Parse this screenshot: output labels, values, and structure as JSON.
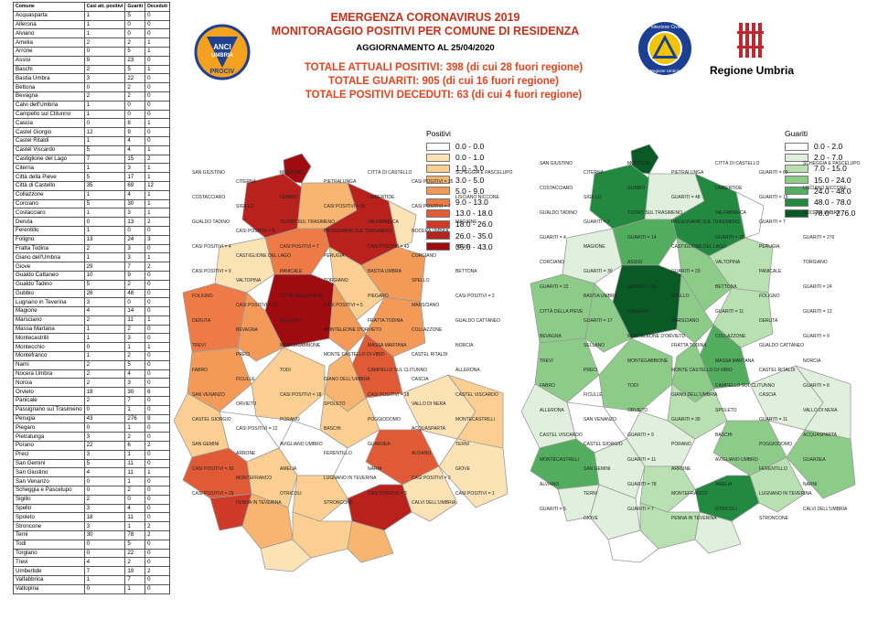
{
  "table": {
    "headers": [
      "Comune",
      "Casi att. positivi",
      "Guariti",
      "Deceduti"
    ],
    "rows": [
      [
        "Acquasparta",
        "1",
        "5",
        "0"
      ],
      [
        "Allerona",
        "1",
        "0",
        "0"
      ],
      [
        "Alviano",
        "1",
        "0",
        "0"
      ],
      [
        "Amelia",
        "2",
        "2",
        "1"
      ],
      [
        "Arrone",
        "0",
        "5",
        "1"
      ],
      [
        "Assisi",
        "9",
        "23",
        "0"
      ],
      [
        "Baschi",
        "2",
        "5",
        "1"
      ],
      [
        "Bastia Umbra",
        "3",
        "22",
        "0"
      ],
      [
        "Bettona",
        "0",
        "2",
        "0"
      ],
      [
        "Bevagna",
        "2",
        "2",
        "0"
      ],
      [
        "Calvi dell'Umbria",
        "1",
        "0",
        "0"
      ],
      [
        "Campello sul Clitunno",
        "1",
        "0",
        "0"
      ],
      [
        "Cascia",
        "0",
        "8",
        "1"
      ],
      [
        "Castel Giorgio",
        "12",
        "9",
        "0"
      ],
      [
        "Castel Ritaldi",
        "1",
        "4",
        "0"
      ],
      [
        "Castel Viscardo",
        "5",
        "4",
        "1"
      ],
      [
        "Castiglione del Lago",
        "7",
        "15",
        "2"
      ],
      [
        "Citerna",
        "1",
        "3",
        "1"
      ],
      [
        "Città della Pieve",
        "5",
        "17",
        "1"
      ],
      [
        "Città  di Castello",
        "35",
        "69",
        "12"
      ],
      [
        "Collazzone",
        "1",
        "4",
        "1"
      ],
      [
        "Corciano",
        "5",
        "30",
        "1"
      ],
      [
        "Costacciaro",
        "1",
        "3",
        "1"
      ],
      [
        "Deruta",
        "0",
        "13",
        "2"
      ],
      [
        "Ferentillo",
        "1",
        "0",
        "0"
      ],
      [
        "Foligno",
        "13",
        "24",
        "3"
      ],
      [
        "Fratta Todina",
        "2",
        "3",
        "0"
      ],
      [
        "Giano dell'Umbria",
        "1",
        "3",
        "1"
      ],
      [
        "Giove",
        "29",
        "7",
        "2"
      ],
      [
        "Gualdo Cattaneo",
        "10",
        "9",
        "0"
      ],
      [
        "Gualdo Tadino",
        "5",
        "2",
        "0"
      ],
      [
        "Gubbio",
        "26",
        "48",
        "0"
      ],
      [
        "Lugnano in Teverina",
        "3",
        "0",
        "0"
      ],
      [
        "Magione",
        "4",
        "14",
        "0"
      ],
      [
        "Marsciano",
        "2",
        "11",
        "1"
      ],
      [
        "Massa Martana",
        "1",
        "2",
        "0"
      ],
      [
        "Montecastrilli",
        "1",
        "3",
        "0"
      ],
      [
        "Montecchio",
        "0",
        "1",
        "1"
      ],
      [
        "Montefranco",
        "1",
        "2",
        "0"
      ],
      [
        "Narni",
        "2",
        "5",
        "0"
      ],
      [
        "Nocera Umbra",
        "2",
        "4",
        "0"
      ],
      [
        "Norcia",
        "2",
        "3",
        "0"
      ],
      [
        "Orvieto",
        "18",
        "30",
        "6"
      ],
      [
        "Panicale",
        "2",
        "7",
        "0"
      ],
      [
        "Passignano sul Trasimeno",
        "0",
        "1",
        "0"
      ],
      [
        "Perugia",
        "43",
        "276",
        "9"
      ],
      [
        "Piegaro",
        "0",
        "1",
        "0"
      ],
      [
        "Pietralunga",
        "3",
        "2",
        "0"
      ],
      [
        "Porano",
        "22",
        "6",
        "2"
      ],
      [
        "Preci",
        "3",
        "1",
        "0"
      ],
      [
        "San Gemini",
        "5",
        "11",
        "0"
      ],
      [
        "San Giustino",
        "4",
        "11",
        "1"
      ],
      [
        "San Venanzo",
        "0",
        "1",
        "0"
      ],
      [
        "Scheggia e Pascelupo",
        "0",
        "2",
        "0"
      ],
      [
        "Sigillo",
        "2",
        "0",
        "0"
      ],
      [
        "Spello",
        "3",
        "4",
        "0"
      ],
      [
        "Spoleto",
        "18",
        "11",
        "0"
      ],
      [
        "Stroncone",
        "3",
        "1",
        "2"
      ],
      [
        "Terni",
        "30",
        "78",
        "2"
      ],
      [
        "Todi",
        "0",
        "5",
        "0"
      ],
      [
        "Torgiano",
        "0",
        "22",
        "0"
      ],
      [
        "Trevi",
        "4",
        "2",
        "0"
      ],
      [
        "Umbertide",
        "7",
        "19",
        "2"
      ],
      [
        "Valfabbrica",
        "1",
        "7",
        "0"
      ],
      [
        "Valtopina",
        "0",
        "1",
        "0"
      ]
    ]
  },
  "header": {
    "title1": "EMERGENZA CORONAVIRUS 2019",
    "title2": "MONITORAGGIO POSITIVI PER COMUNE DI RESIDENZA",
    "update": "AGGIORNAMENTO AL 25/04/2020",
    "total_positive": "TOTALE ATTUALI POSITIVI: 398 (di cui 28 fuori regione)",
    "total_recovered": "TOTALE GUARITI: 905 (di cui 16 fuori regione)",
    "total_deceased": "TOTALE POSITIVI DECEDUTI: 63 (di cui 4 fuori regione)"
  },
  "logos": {
    "anci_text": [
      "ANCI",
      "UMBRIA",
      "PROCIV"
    ],
    "protezione_civile_text": [
      "Protezione Civile",
      "Regione Umbria"
    ],
    "region_label": "Regione Umbria"
  },
  "legend_positivi": {
    "title": "Positivi",
    "items": [
      {
        "label": "0.0 - 0.0",
        "color": "#ffffff"
      },
      {
        "label": "0.0 - 1.0",
        "color": "#fde2b6"
      },
      {
        "label": "1.0 - 3.0",
        "color": "#fbcf92"
      },
      {
        "label": "3.0 - 5.0",
        "color": "#f7b56f"
      },
      {
        "label": "5.0 - 9.0",
        "color": "#f39a58"
      },
      {
        "label": "9.0 - 13.0",
        "color": "#ee7b45"
      },
      {
        "label": "13.0 - 18.0",
        "color": "#e05a36"
      },
      {
        "label": "18.0 - 26.0",
        "color": "#cf3a28"
      },
      {
        "label": "26.0 - 35.0",
        "color": "#b8211c"
      },
      {
        "label": "35.0 - 43.0",
        "color": "#9e0c12"
      }
    ]
  },
  "legend_guariti": {
    "title": "Guariti",
    "items": [
      {
        "label": "0.0 - 2.0",
        "color": "#ffffff"
      },
      {
        "label": "2.0 - 7.0",
        "color": "#dff0dc"
      },
      {
        "label": "7.0 - 15.0",
        "color": "#b8e0b1"
      },
      {
        "label": "15.0 - 24.0",
        "color": "#8ccc88"
      },
      {
        "label": "24.0 - 48.0",
        "color": "#52ad5e"
      },
      {
        "label": "48.0 - 78.0",
        "color": "#228a3f"
      },
      {
        "label": "78.0 - 276.0",
        "color": "#0a5a26"
      }
    ]
  },
  "map_positivi_labels": [
    "SAN GIUSTINO",
    "CITERNA",
    "MONTONE",
    "PIETRALUNGA",
    "CITTÀ DI CASTELLO",
    "CASI POSITIVI = 35",
    "SCHEGGIA E PASCELUPO",
    "COSTACCIARO",
    "SIGILLO",
    "GUBBIO",
    "CASI POSITIVI = 26",
    "UMBERTIDE",
    "CASI POSITIVI = 7",
    "LISCIANO NICCONE",
    "GUALDO TADINO",
    "CASI POSITIVI = 5",
    "TUORO SUL TRASIMENO",
    "PASSIGNANO SUL TRASIMENO",
    "VALFABBRICA",
    "NOCERA UMBRA",
    "MAGIONE",
    "CASI POSITIVI = 4",
    "CASTIGLIONE DEL LAGO",
    "CASI POSITIVI = 7",
    "PERUGIA",
    "CASI POSITIVI = 43",
    "CORCIANO",
    "ASSISI",
    "CASI POSITIVI = 9",
    "VALTOPINA",
    "PANICALE",
    "TORGIANO",
    "BASTIA UMBRA",
    "SPELLO",
    "BETTONA",
    "FOLIGNO",
    "CASI POSITIVI = 13",
    "CITTÀ DELLA PIEVE",
    "CASI POSITIVI = 5",
    "PIEGARO",
    "MARSCIANO",
    "CASI POSITIVI = 2",
    "DERUTA",
    "BEVAGNA",
    "SELLANO",
    "MONTELEONE D'ORVIETO",
    "FRATTA TODINA",
    "COLLAZZONE",
    "GUALDO CATTANEO",
    "TREVI",
    "PRECI",
    "MONTEGABBIONE",
    "MONTE CASTELLO DI VIBIO",
    "MASSA MARTANA",
    "CASTEL RITALDI",
    "NORCIA",
    "FABRO",
    "FICULLE",
    "TODI",
    "GIANO DELL'UMBRIA",
    "CAMPELLO SUL CLITUNNO",
    "CASCIA",
    "ALLERONA",
    "SAN VENANZO",
    "ORVIETO",
    "CASI POSITIVI = 18",
    "SPOLETO",
    "CASI POSITIVI = 18",
    "VALLO DI NERA",
    "CASTEL VISCARDO",
    "CASTEL GIORGIO",
    "CASI POSITIVI = 12",
    "PORANO",
    "BASCHI",
    "POGGIODOMO",
    "ACQUASPARTA",
    "MONTECASTRILLI",
    "SAN GEMINI",
    "ARRONE",
    "AVIGLIANO UMBRO",
    "FERENTILLO",
    "GUARDEA",
    "ALVIANO",
    "TERNI",
    "CASI POSITIVI = 30",
    "MONTEFRANCO",
    "AMELIA",
    "LUGNANO IN TEVERINA",
    "NARNI",
    "CASI POSITIVI = 2",
    "GIOVE",
    "CASI POSITIVI = 29",
    "PENNA IN TEVERINA",
    "OTRICOLI",
    "STRONCONE",
    "CASI POSITIVI = 3",
    "CALVI DELL'UMBRIA",
    "CASI POSITIVI = 1"
  ],
  "map_guariti_labels": [
    "SAN GIUSTINO",
    "CITERNA",
    "MONTONE",
    "PIETRALUNGA",
    "CITTÀ DI CASTELLO",
    "GUARITI = 69",
    "SCHEGGIA E PASCELUPO",
    "COSTACCIARO",
    "SIGILLO",
    "GUBBIO",
    "GUARITI = 48",
    "UMBERTIDE",
    "GUARITI = 19",
    "LISCIANO NICCONE",
    "GUALDO TADINO",
    "GUARITI = 2",
    "TUORO SUL TRASIMENO",
    "PASSIGNANO SUL TRASIMENO",
    "VALFABBRICA",
    "GUARITI = 7",
    "NOCERA UMBRA",
    "GUARITI = 4",
    "MAGIONE",
    "GUARITI = 14",
    "CASTIGLIONE DEL LAGO",
    "GUARITI = 15",
    "PERUGIA",
    "GUARITI = 276",
    "CORCIANO",
    "GUARITI = 30",
    "ASSISI",
    "GUARITI = 23",
    "VALTOPINA",
    "PANICALE",
    "TORGIANO",
    "GUARITI = 22",
    "BASTIA UMBRA",
    "GUARITI = 22",
    "SPELLO",
    "BETTONA",
    "FOLIGNO",
    "GUARITI = 24",
    "CITTÀ DELLA PIEVE",
    "GUARITI = 17",
    "PIEGARO",
    "MARSCIANO",
    "GUARITI = 11",
    "DERUTA",
    "GUARITI = 13",
    "BEVAGNA",
    "SELLANO",
    "MONTELEONE D'ORVIETO",
    "FRATTA TODINA",
    "COLLAZZONE",
    "GUALDO CATTANEO",
    "GUARITI = 9",
    "TREVI",
    "PRECI",
    "MONTEGABBIONE",
    "MONTE CASTELLO DI VIBIO",
    "MASSA MARTANA",
    "CASTEL RITALDI",
    "NORCIA",
    "FABRO",
    "FICULLE",
    "TODI",
    "GIANO DELL'UMBRIA",
    "CAMPELLO SUL CLITUNNO",
    "CASCIA",
    "GUARITI = 8",
    "ALLERONA",
    "SAN VENANZO",
    "ORVIETO",
    "GUARITI = 30",
    "SPOLETO",
    "GUARITI = 11",
    "VALLO DI NERA",
    "CASTEL VISCARDO",
    "CASTEL GIORGIO",
    "GUARITI = 9",
    "PORANO",
    "BASCHI",
    "POGGIODOMO",
    "ACQUASPARTA",
    "MONTECASTRILLI",
    "SAN GEMINI",
    "GUARITI = 11",
    "ARRONE",
    "AVIGLIANO UMBRO",
    "FERENTILLO",
    "GUARDEA",
    "ALVIANO",
    "TERNI",
    "GUARITI = 78",
    "MONTEFRANCO",
    "AMELIA",
    "LUGNANO IN TEVERINA",
    "NARNI",
    "GUARITI = 5",
    "GIOVE",
    "GUARITI = 7",
    "PENNA IN TEVERINA",
    "OTRICOLI",
    "STRONCONE",
    "CALVI DELL'UMBRIA"
  ]
}
